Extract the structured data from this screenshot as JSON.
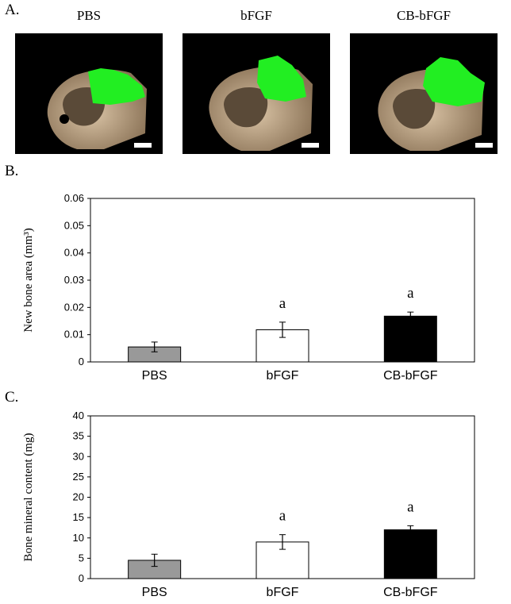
{
  "panel_a": {
    "letter": "A.",
    "images": [
      {
        "title": "PBS",
        "has_green_region": true
      },
      {
        "title": "bFGF",
        "has_green_region": true
      },
      {
        "title": "CB-bFGF",
        "has_green_region": true
      }
    ]
  },
  "colors": {
    "PBS": "#999999",
    "bFGF": "#ffffff",
    "CB-bFGF": "#000000",
    "new_bone": "#22ee22"
  },
  "chart_data": [
    {
      "letter": "B.",
      "type": "bar",
      "ylabel": "New bone area (mm³)",
      "ylim": [
        0,
        0.06
      ],
      "yticks": [
        "0",
        "0.01",
        "0.02",
        "0.03",
        "0.04",
        "0.05",
        "0.06"
      ],
      "categories": [
        "PBS",
        "bFGF",
        "CB-bFGF"
      ],
      "values": [
        0.0055,
        0.0118,
        0.0168
      ],
      "errors": [
        0.0018,
        0.0028,
        0.0015
      ],
      "annotations": [
        "",
        "a",
        "a"
      ],
      "grid": false
    },
    {
      "letter": "C.",
      "type": "bar",
      "ylabel": "Bone mineral content (mg)",
      "ylim": [
        0,
        40
      ],
      "yticks": [
        "0",
        "5",
        "10",
        "15",
        "20",
        "25",
        "30",
        "35",
        "40"
      ],
      "categories": [
        "PBS",
        "bFGF",
        "CB-bFGF"
      ],
      "values": [
        4.5,
        9.0,
        12.0
      ],
      "errors": [
        1.5,
        1.8,
        1.0
      ],
      "annotations": [
        "",
        "a",
        "a"
      ],
      "grid": false
    }
  ]
}
